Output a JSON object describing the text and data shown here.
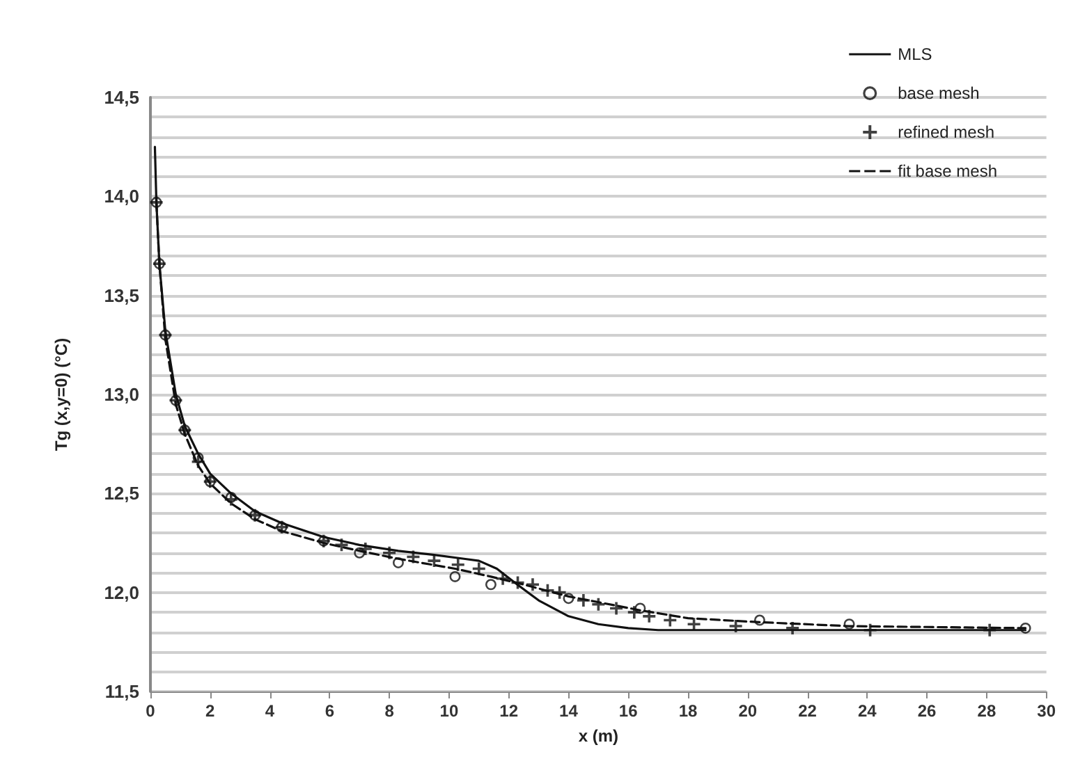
{
  "chart_data": {
    "type": "line",
    "xlabel": "x (m)",
    "ylabel": "Tg (x,y=0) (°C)",
    "xlim": [
      0,
      30
    ],
    "xticks": [
      0,
      2,
      4,
      6,
      8,
      10,
      12,
      14,
      16,
      18,
      20,
      22,
      24,
      26,
      28,
      30
    ],
    "ylim": [
      11.5,
      14.5
    ],
    "yticks": [
      {
        "value": 11.5,
        "label": "11,5"
      },
      {
        "value": 11.6,
        "label": null
      },
      {
        "value": 11.7,
        "label": null
      },
      {
        "value": 11.8,
        "label": null
      },
      {
        "value": 11.9,
        "label": null
      },
      {
        "value": 12.0,
        "label": "12,0"
      },
      {
        "value": 12.1,
        "label": null
      },
      {
        "value": 12.2,
        "label": null
      },
      {
        "value": 12.3,
        "label": null
      },
      {
        "value": 12.4,
        "label": null
      },
      {
        "value": 12.5,
        "label": "12,5"
      },
      {
        "value": 12.6,
        "label": null
      },
      {
        "value": 12.7,
        "label": null
      },
      {
        "value": 12.8,
        "label": null
      },
      {
        "value": 12.9,
        "label": null
      },
      {
        "value": 13.0,
        "label": "13,0"
      },
      {
        "value": 13.1,
        "label": null
      },
      {
        "value": 13.2,
        "label": null
      },
      {
        "value": 13.3,
        "label": null
      },
      {
        "value": 13.4,
        "label": null
      },
      {
        "value": 13.5,
        "label": "13,5"
      },
      {
        "value": 13.6,
        "label": null
      },
      {
        "value": 13.7,
        "label": null
      },
      {
        "value": 13.8,
        "label": null
      },
      {
        "value": 13.9,
        "label": null
      },
      {
        "value": 14.0,
        "label": "14,0"
      },
      {
        "value": 14.1,
        "label": null
      },
      {
        "value": 14.2,
        "label": null
      },
      {
        "value": 14.3,
        "label": null
      },
      {
        "value": 14.4,
        "label": null
      },
      {
        "value": 14.5,
        "label": "14,5"
      }
    ],
    "grid": "y",
    "legend": "top right",
    "series": [
      {
        "name": "MLS",
        "color": "#111111",
        "marker": "none",
        "line_style": "solid",
        "x": [
          0.15,
          0.2,
          0.3,
          0.5,
          0.85,
          1.15,
          1.6,
          2.0,
          2.7,
          3.5,
          4.4,
          5.8,
          7,
          8.3,
          9.5,
          10.5,
          11.0,
          11.6,
          12.2,
          13,
          14,
          15,
          16,
          17,
          20,
          25,
          29.3
        ],
        "values": [
          14.25,
          13.97,
          13.66,
          13.32,
          13.0,
          12.84,
          12.7,
          12.6,
          12.5,
          12.41,
          12.35,
          12.28,
          12.24,
          12.21,
          12.19,
          12.17,
          12.16,
          12.12,
          12.05,
          11.96,
          11.88,
          11.84,
          11.82,
          11.81,
          11.81,
          11.81,
          11.81
        ]
      },
      {
        "name": "base mesh",
        "type": "scatter",
        "color": "#111111",
        "marker": "circle",
        "x": [
          0.2,
          0.3,
          0.5,
          0.85,
          1.15,
          1.6,
          2.0,
          2.7,
          3.5,
          4.4,
          5.8,
          7.0,
          8.3,
          10.2,
          11.4,
          14.0,
          16.4,
          20.4,
          23.4,
          29.3
        ],
        "values": [
          13.97,
          13.66,
          13.3,
          12.97,
          12.82,
          12.68,
          12.56,
          12.48,
          12.39,
          12.33,
          12.26,
          12.2,
          12.15,
          12.08,
          12.04,
          11.97,
          11.92,
          11.86,
          11.84,
          11.82
        ]
      },
      {
        "name": "refined mesh",
        "type": "scatter",
        "color": "#111111",
        "marker": "cross",
        "x": [
          0.2,
          0.3,
          0.5,
          0.85,
          1.15,
          1.6,
          2.0,
          2.7,
          3.5,
          4.4,
          5.8,
          6.4,
          7.2,
          8.0,
          8.8,
          9.5,
          10.3,
          11.0,
          11.8,
          12.3,
          12.8,
          13.3,
          13.7,
          14.5,
          15.0,
          15.6,
          16.2,
          16.7,
          17.4,
          18.2,
          19.6,
          21.5,
          24.1,
          28.1
        ],
        "values": [
          13.97,
          13.66,
          13.3,
          12.97,
          12.82,
          12.66,
          12.56,
          12.47,
          12.39,
          12.33,
          12.26,
          12.24,
          12.22,
          12.2,
          12.18,
          12.16,
          12.14,
          12.12,
          12.07,
          12.05,
          12.04,
          12.01,
          12.0,
          11.96,
          11.94,
          11.92,
          11.9,
          11.88,
          11.86,
          11.84,
          11.83,
          11.82,
          11.81,
          11.81
        ]
      },
      {
        "name": "fit base mesh",
        "color": "#111111",
        "marker": "none",
        "line_style": "dashed",
        "x": [
          0.2,
          0.3,
          0.5,
          0.85,
          1.15,
          1.6,
          2,
          2.7,
          3.5,
          4.4,
          5.8,
          7,
          8.3,
          10.2,
          11.4,
          12.5,
          14,
          16.4,
          18,
          20.4,
          23.4,
          29.3
        ],
        "values": [
          13.97,
          13.66,
          13.28,
          12.95,
          12.8,
          12.64,
          12.55,
          12.45,
          12.37,
          12.31,
          12.25,
          12.21,
          12.17,
          12.12,
          12.08,
          12.04,
          11.98,
          11.91,
          11.87,
          11.85,
          11.83,
          11.82
        ]
      }
    ]
  }
}
